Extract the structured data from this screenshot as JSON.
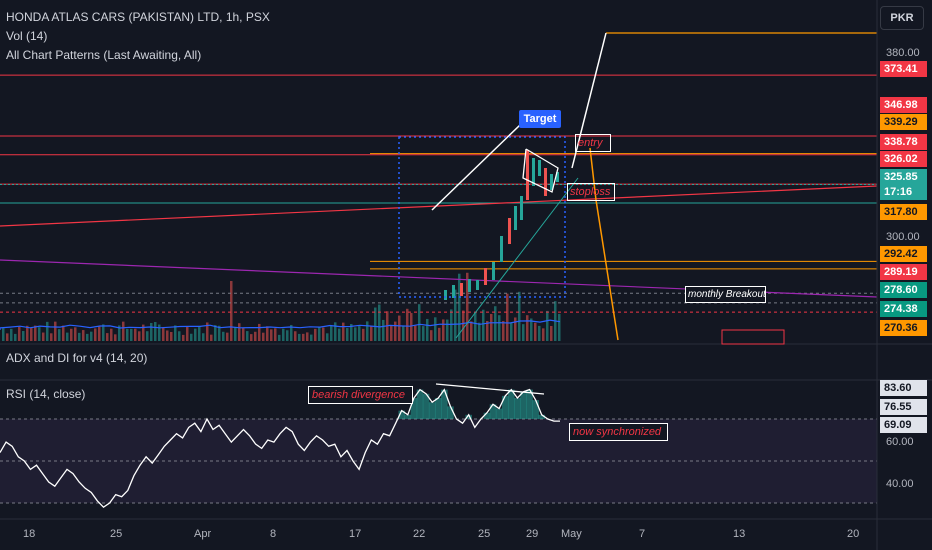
{
  "header": {
    "title": "HONDA ATLAS CARS (PAKISTAN) LTD, 1h, PSX",
    "indicator_vol": "Vol (14)",
    "indicator_patterns": "All Chart Patterns (Last Awaiting, All)",
    "currency_button": "PKR"
  },
  "panes": {
    "adx_title": "ADX and DI for v4 (14, 20)",
    "rsi_title": "RSI (14, close)"
  },
  "price_axis": {
    "labels": [
      "380.00",
      "300.00"
    ],
    "tags": [
      {
        "value": "373.41",
        "bg": "#f23645",
        "fg": "#ffffff"
      },
      {
        "value": "346.98",
        "bg": "#f23645",
        "fg": "#ffffff"
      },
      {
        "value": "339.29",
        "bg": "#ff9800",
        "fg": "#131722"
      },
      {
        "value": "338.78",
        "bg": "#f23645",
        "fg": "#ffffff"
      },
      {
        "value": "326.02",
        "bg": "#f23645",
        "fg": "#ffffff"
      },
      {
        "value": "325.85",
        "bg": "#26a69a",
        "fg": "#ffffff"
      },
      {
        "value": "17:16",
        "bg": "#26a69a",
        "fg": "#ffffff"
      },
      {
        "value": "317.80",
        "bg": "#ff9800",
        "fg": "#131722"
      },
      {
        "value": "292.42",
        "bg": "#ff9800",
        "fg": "#131722"
      },
      {
        "value": "289.19",
        "bg": "#f23645",
        "fg": "#ffffff"
      },
      {
        "value": "278.60",
        "bg": "#089981",
        "fg": "#ffffff"
      },
      {
        "value": "274.38",
        "bg": "#089981",
        "fg": "#ffffff"
      },
      {
        "value": "270.36",
        "bg": "#ff9800",
        "fg": "#131722"
      }
    ]
  },
  "rsi_axis": {
    "labels": [
      "60.00",
      "40.00"
    ],
    "tags": [
      {
        "value": "83.60",
        "bg": "#e0e3eb",
        "fg": "#131722"
      },
      {
        "value": "76.55",
        "bg": "#e0e3eb",
        "fg": "#131722"
      },
      {
        "value": "69.09",
        "bg": "#e0e3eb",
        "fg": "#131722"
      }
    ]
  },
  "time_axis": {
    "labels": [
      "18",
      "25",
      "Apr",
      "8",
      "17",
      "22",
      "25",
      "29",
      "May",
      "7",
      "13",
      "20"
    ]
  },
  "annotations": {
    "target": "Target",
    "entry": "entry",
    "stoploss": "stoploss",
    "monthly_breakout": "monthly Breakout",
    "bearish_divergence": "bearish divergence",
    "now_synchronized": "now synchronized"
  },
  "colors": {
    "background": "#131722",
    "up": "#26a69a",
    "down": "#ef5350",
    "resistance": "#f23645",
    "support": "#ff9800",
    "rsi": "#ffffff",
    "annotation_text": "#f23645",
    "target_box": "#2962ff"
  },
  "chart_data": {
    "type": "line",
    "price_levels": [
      373.41,
      346.98,
      339.29,
      338.78,
      326.02,
      325.85,
      317.8,
      292.42,
      289.19,
      278.6,
      274.38,
      270.36
    ],
    "last_price": 325.85,
    "price_ylim": [
      262,
      395
    ],
    "rsi_levels": [
      83.6,
      76.55,
      69.09
    ],
    "rsi_ylim": [
      24,
      90
    ],
    "rsi_series": {
      "values": [
        54,
        59,
        57,
        52,
        50,
        46,
        48,
        44,
        40,
        38,
        42,
        46,
        44,
        40,
        37,
        35,
        31,
        28,
        30,
        34,
        33,
        36,
        43,
        48,
        52,
        49,
        53,
        57,
        60,
        63,
        61,
        66,
        68,
        64,
        70,
        65,
        67,
        63,
        59,
        62,
        65,
        62,
        58,
        56,
        60,
        59,
        63,
        66,
        64,
        58,
        55,
        59,
        62,
        60,
        57,
        58,
        52,
        55,
        50,
        46,
        54,
        60,
        58,
        63,
        62,
        68,
        74,
        72,
        80,
        84,
        82,
        78,
        80,
        84,
        76,
        70,
        68,
        72,
        66,
        70,
        73,
        77,
        75,
        81,
        84,
        80,
        83,
        84,
        79,
        72,
        70,
        69,
        69
      ]
    }
  }
}
